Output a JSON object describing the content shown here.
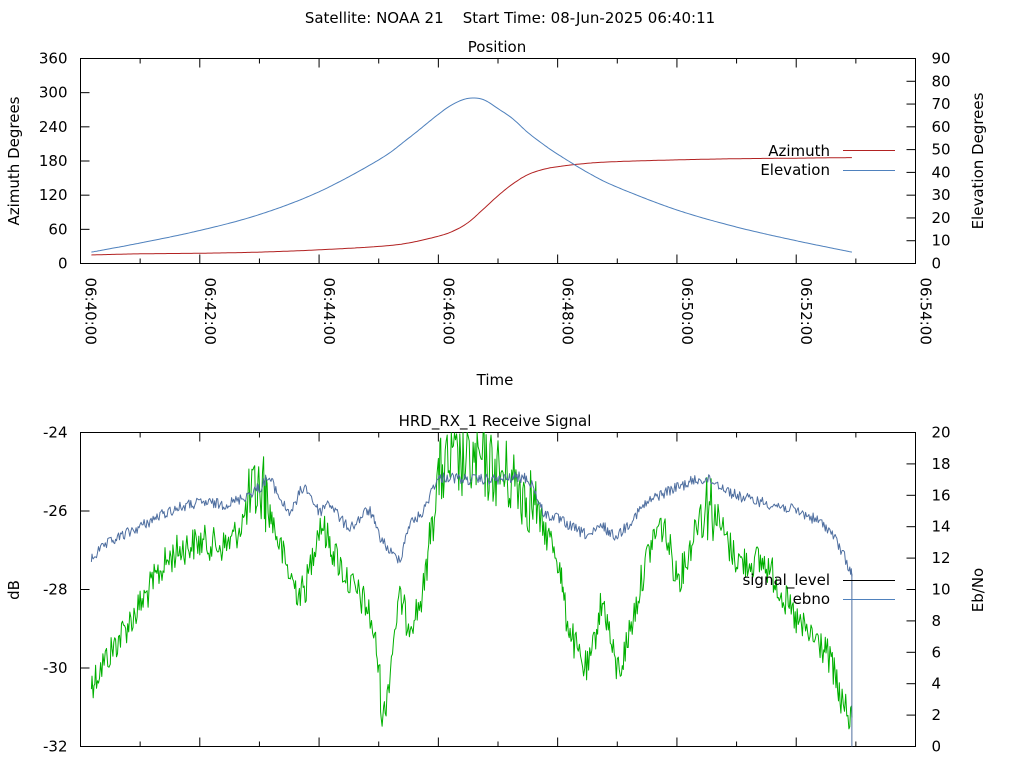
{
  "header": "Satellite: NOAA 21    Start Time: 08-Jun-2025 06:40:11",
  "colors": {
    "azimuth": "#b22222",
    "elevation": "#4f81bd",
    "signal_level": "#00b000",
    "ebno": "#4f6fa0",
    "legend_signal_level": "#000000",
    "legend_ebno": "#4f81bd"
  },
  "chart_data": [
    {
      "type": "line",
      "title": "Position",
      "xlabel": "Time",
      "ylabel": "Azimuth Degrees",
      "y2label": "Elevation Degrees",
      "xlim": [
        "06:40:00",
        "06:54:00"
      ],
      "xticks": [
        "06:40:00",
        "06:42:00",
        "06:44:00",
        "06:46:00",
        "06:48:00",
        "06:50:00",
        "06:52:00",
        "06:54:00"
      ],
      "ylim": [
        0,
        360
      ],
      "yticks": [
        0,
        60,
        120,
        180,
        240,
        300,
        360
      ],
      "y2lim": [
        0,
        90
      ],
      "y2ticks": [
        0,
        10,
        20,
        30,
        40,
        50,
        60,
        70,
        80,
        90
      ],
      "legend_position": "right",
      "series": [
        {
          "name": "Azimuth",
          "axis": "y",
          "x": [
            "06:40:11",
            "06:41:00",
            "06:42:00",
            "06:43:00",
            "06:44:00",
            "06:45:00",
            "06:45:30",
            "06:46:00",
            "06:46:15",
            "06:46:30",
            "06:46:45",
            "06:47:00",
            "06:47:15",
            "06:47:30",
            "06:47:45",
            "06:48:00",
            "06:48:30",
            "06:49:00",
            "06:50:00",
            "06:51:00",
            "06:52:00",
            "06:52:56"
          ],
          "values": [
            15,
            17,
            18,
            20,
            24,
            30,
            36,
            48,
            57,
            72,
            95,
            119,
            140,
            156,
            165,
            170,
            176,
            179,
            182,
            184,
            185,
            186
          ]
        },
        {
          "name": "Elevation",
          "axis": "y2",
          "x": [
            "06:40:11",
            "06:41:00",
            "06:42:00",
            "06:43:00",
            "06:44:00",
            "06:45:00",
            "06:45:30",
            "06:46:00",
            "06:46:15",
            "06:46:30",
            "06:46:45",
            "06:47:00",
            "06:47:15",
            "06:47:30",
            "06:47:45",
            "06:48:00",
            "06:48:30",
            "06:49:00",
            "06:50:00",
            "06:51:00",
            "06:52:00",
            "06:52:56"
          ],
          "values": [
            5,
            9,
            14.5,
            21.5,
            31.5,
            45.5,
            55,
            65.5,
            70,
            72.5,
            72,
            68,
            63.5,
            57.5,
            52.5,
            48,
            40,
            33.5,
            23.5,
            16,
            10,
            5
          ]
        }
      ]
    },
    {
      "type": "line",
      "title": "HRD_RX_1 Receive Signal",
      "xlabel": "",
      "ylabel": "dB",
      "y2label": "Eb/No",
      "xlim": [
        "06:40:00",
        "06:54:00"
      ],
      "ylim": [
        -32,
        -24
      ],
      "yticks": [
        -32,
        -30,
        -28,
        -26,
        -24
      ],
      "y2lim": [
        0,
        20
      ],
      "y2ticks": [
        0,
        2,
        4,
        6,
        8,
        10,
        12,
        14,
        16,
        18,
        20
      ],
      "legend_position": "right",
      "series": [
        {
          "name": "signal_level",
          "axis": "y2",
          "x": [
            "06:40:11",
            "06:40:30",
            "06:41:00",
            "06:41:30",
            "06:42:00",
            "06:42:30",
            "06:43:00",
            "06:43:10",
            "06:43:30",
            "06:43:45",
            "06:44:00",
            "06:44:10",
            "06:44:30",
            "06:44:50",
            "06:45:00",
            "06:45:05",
            "06:45:20",
            "06:45:30",
            "06:45:45",
            "06:46:00",
            "06:46:30",
            "06:47:00",
            "06:47:30",
            "06:47:45",
            "06:48:00",
            "06:48:10",
            "06:48:30",
            "06:48:45",
            "06:49:00",
            "06:49:15",
            "06:49:30",
            "06:49:45",
            "06:50:00",
            "06:50:10",
            "06:50:30",
            "06:51:00",
            "06:51:30",
            "06:52:00",
            "06:52:30",
            "06:52:45",
            "06:52:56"
          ],
          "values": [
            4,
            6,
            9,
            12,
            13,
            13,
            16.5,
            15,
            11,
            10,
            14,
            13,
            10.5,
            8.5,
            5,
            2,
            9,
            8,
            10,
            17,
            18,
            17.5,
            16,
            14,
            12,
            8,
            5,
            9,
            5,
            8,
            12,
            14,
            11,
            12,
            15.5,
            12,
            11.5,
            8,
            6,
            3,
            1.5
          ]
        },
        {
          "name": "ebno",
          "axis": "y2",
          "x": [
            "06:40:11",
            "06:40:30",
            "06:41:00",
            "06:41:30",
            "06:42:00",
            "06:42:30",
            "06:43:00",
            "06:43:10",
            "06:43:30",
            "06:43:45",
            "06:44:00",
            "06:44:10",
            "06:44:30",
            "06:44:50",
            "06:45:00",
            "06:45:20",
            "06:45:30",
            "06:45:45",
            "06:46:00",
            "06:46:30",
            "06:47:00",
            "06:47:30",
            "06:47:45",
            "06:48:00",
            "06:48:30",
            "06:48:45",
            "06:49:00",
            "06:49:30",
            "06:50:00",
            "06:50:30",
            "06:51:00",
            "06:51:30",
            "06:52:00",
            "06:52:30",
            "06:52:45",
            "06:52:56"
          ],
          "values": [
            12,
            13,
            14,
            15,
            15.5,
            15.5,
            16.5,
            17,
            15,
            16.5,
            15,
            15.5,
            14,
            15,
            13.5,
            12,
            14,
            15,
            17,
            17,
            17,
            17,
            15,
            14.5,
            13.5,
            14,
            13.5,
            15.5,
            16.5,
            17,
            16,
            15.5,
            15,
            14,
            12.5,
            11
          ]
        }
      ]
    }
  ]
}
